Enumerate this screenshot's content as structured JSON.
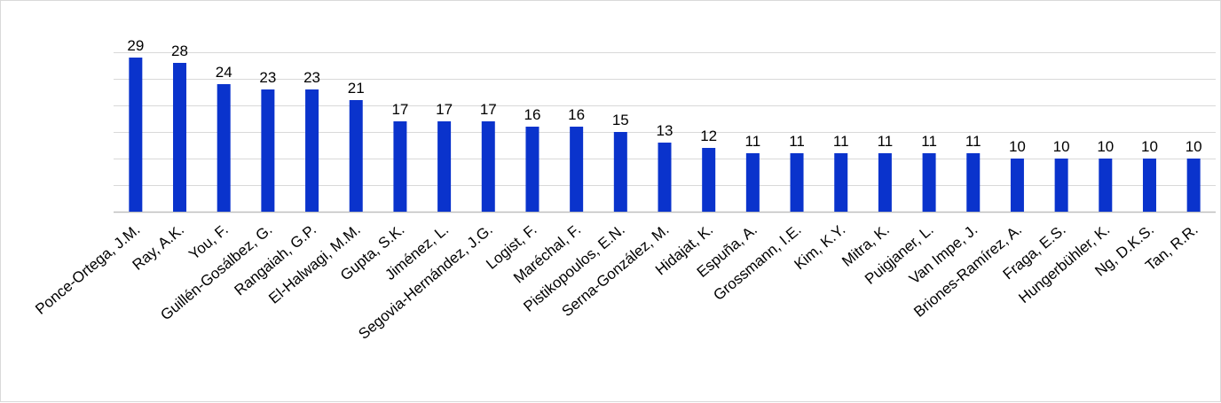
{
  "chart_data": {
    "type": "bar",
    "title": "",
    "xlabel": "",
    "ylabel": "",
    "categories": [
      "Ponce-Ortega, J.M.",
      "Ray, A.K.",
      "You, F.",
      "Guillén-Gosálbez, G.",
      "Rangaiah, G.P.",
      "El-Halwagi, M.M.",
      "Gupta, S.K.",
      "Jiménez, L.",
      "Segovia-Hernández, J.G.",
      "Logist, F.",
      "Maréchal, F.",
      "Pistikopoulos, E.N.",
      "Serna-González, M.",
      "Hidajat, K.",
      "Espuña, A.",
      "Grossmann, I.E.",
      "Kim, K.Y.",
      "Mitra, K.",
      "Puigjaner, L.",
      "Van Impe, J.",
      "Briones-Ramírez, A.",
      "Fraga, E.S.",
      "Hungerbühler, K.",
      "Ng, D.K.S.",
      "Tan, R.R."
    ],
    "values": [
      29,
      28,
      24,
      23,
      23,
      21,
      17,
      17,
      17,
      16,
      16,
      15,
      13,
      12,
      11,
      11,
      11,
      11,
      11,
      11,
      10,
      10,
      10,
      10,
      10
    ],
    "ylim": [
      0,
      30
    ],
    "grid": true,
    "legend": "none",
    "colors": {
      "bar": "#0A33CC",
      "grid": "#d9d9d9",
      "axis": "#bfbfbf"
    }
  }
}
